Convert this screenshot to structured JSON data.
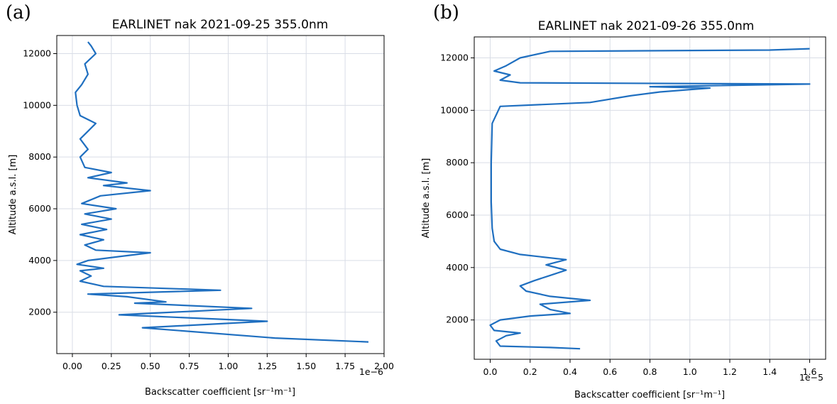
{
  "chart_data": [
    {
      "panel": "(a)",
      "type": "line",
      "title": "EARLINET nak 2021-09-25 355.0nm",
      "xlabel": "Backscatter coefficient [sr⁻¹m⁻¹]",
      "ylabel": "Altitude a.s.l. [m]",
      "x_offset_text": "1e−6",
      "xlim": [
        -0.1,
        2.0
      ],
      "ylim": [
        400,
        12700
      ],
      "xticks": [
        0.0,
        0.25,
        0.5,
        0.75,
        1.0,
        1.25,
        1.5,
        1.75,
        2.0
      ],
      "xtick_labels": [
        "0.00",
        "0.25",
        "0.50",
        "0.75",
        "1.00",
        "1.25",
        "1.50",
        "1.75",
        "2.00"
      ],
      "yticks": [
        2000,
        4000,
        6000,
        8000,
        10000,
        12000
      ],
      "ytick_labels": [
        "2000",
        "4000",
        "6000",
        "8000",
        "10000",
        "12000"
      ],
      "grid": true,
      "series": [
        {
          "color": "#1f6fc0",
          "points": [
            [
              1.9,
              850
            ],
            [
              1.3,
              1000
            ],
            [
              0.45,
              1400
            ],
            [
              1.25,
              1650
            ],
            [
              0.3,
              1900
            ],
            [
              1.15,
              2150
            ],
            [
              0.4,
              2350
            ],
            [
              0.6,
              2400
            ],
            [
              0.35,
              2600
            ],
            [
              0.1,
              2700
            ],
            [
              0.95,
              2850
            ],
            [
              0.2,
              3000
            ],
            [
              0.05,
              3200
            ],
            [
              0.12,
              3400
            ],
            [
              0.05,
              3600
            ],
            [
              0.2,
              3700
            ],
            [
              0.03,
              3850
            ],
            [
              0.1,
              4000
            ],
            [
              0.3,
              4150
            ],
            [
              0.5,
              4300
            ],
            [
              0.15,
              4400
            ],
            [
              0.08,
              4600
            ],
            [
              0.2,
              4800
            ],
            [
              0.05,
              5000
            ],
            [
              0.22,
              5200
            ],
            [
              0.06,
              5400
            ],
            [
              0.25,
              5600
            ],
            [
              0.08,
              5800
            ],
            [
              0.28,
              6000
            ],
            [
              0.06,
              6200
            ],
            [
              0.18,
              6500
            ],
            [
              0.5,
              6700
            ],
            [
              0.2,
              6900
            ],
            [
              0.35,
              7000
            ],
            [
              0.1,
              7200
            ],
            [
              0.25,
              7400
            ],
            [
              0.08,
              7600
            ],
            [
              0.05,
              8000
            ],
            [
              0.1,
              8300
            ],
            [
              0.05,
              8700
            ],
            [
              0.1,
              9000
            ],
            [
              0.15,
              9300
            ],
            [
              0.05,
              9600
            ],
            [
              0.03,
              10000
            ],
            [
              0.02,
              10500
            ],
            [
              0.06,
              10800
            ],
            [
              0.1,
              11200
            ],
            [
              0.08,
              11600
            ],
            [
              0.15,
              12000
            ],
            [
              0.12,
              12300
            ],
            [
              0.1,
              12450
            ]
          ]
        }
      ]
    },
    {
      "panel": "(b)",
      "type": "line",
      "title": "EARLINET nak 2021-09-26 355.0nm",
      "xlabel": "Backscatter coefficient [sr⁻¹m⁻¹]",
      "ylabel": "Altitude a.s.l. [m]",
      "x_offset_text": "1e−5",
      "xlim": [
        -0.08,
        1.68
      ],
      "ylim": [
        500,
        12800
      ],
      "xticks": [
        0.0,
        0.2,
        0.4,
        0.6,
        0.8,
        1.0,
        1.2,
        1.4,
        1.6
      ],
      "xtick_labels": [
        "0.0",
        "0.2",
        "0.4",
        "0.6",
        "0.8",
        "1.0",
        "1.2",
        "1.4",
        "1.6"
      ],
      "yticks": [
        2000,
        4000,
        6000,
        8000,
        10000,
        12000
      ],
      "ytick_labels": [
        "2000",
        "4000",
        "6000",
        "8000",
        "10000",
        "12000"
      ],
      "grid": true,
      "series": [
        {
          "color": "#1f6fc0",
          "points": [
            [
              0.45,
              900
            ],
            [
              0.3,
              950
            ],
            [
              0.05,
              1000
            ],
            [
              0.03,
              1200
            ],
            [
              0.08,
              1400
            ],
            [
              0.15,
              1500
            ],
            [
              0.02,
              1600
            ],
            [
              0.0,
              1800
            ],
            [
              0.05,
              2000
            ],
            [
              0.2,
              2150
            ],
            [
              0.4,
              2250
            ],
            [
              0.3,
              2400
            ],
            [
              0.25,
              2600
            ],
            [
              0.5,
              2750
            ],
            [
              0.3,
              2900
            ],
            [
              0.18,
              3100
            ],
            [
              0.15,
              3300
            ],
            [
              0.22,
              3500
            ],
            [
              0.3,
              3700
            ],
            [
              0.38,
              3900
            ],
            [
              0.28,
              4100
            ],
            [
              0.38,
              4300
            ],
            [
              0.15,
              4500
            ],
            [
              0.05,
              4700
            ],
            [
              0.02,
              5000
            ],
            [
              0.01,
              5500
            ],
            [
              0.005,
              6500
            ],
            [
              0.005,
              8000
            ],
            [
              0.01,
              9500
            ],
            [
              0.05,
              10150
            ],
            [
              0.5,
              10300
            ],
            [
              0.7,
              10550
            ],
            [
              0.85,
              10700
            ],
            [
              1.1,
              10850
            ],
            [
              0.8,
              10900
            ],
            [
              1.6,
              11000
            ],
            [
              0.15,
              11050
            ],
            [
              0.05,
              11150
            ],
            [
              0.1,
              11350
            ],
            [
              0.02,
              11500
            ],
            [
              0.08,
              11700
            ],
            [
              0.15,
              12000
            ],
            [
              0.3,
              12250
            ],
            [
              1.4,
              12300
            ],
            [
              1.6,
              12350
            ]
          ]
        }
      ]
    }
  ]
}
